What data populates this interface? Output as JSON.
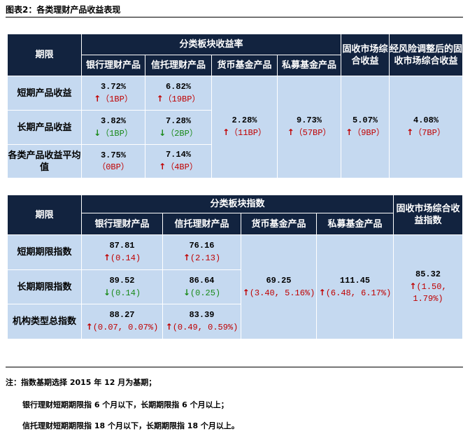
{
  "title": "图表2：各类理财产品收益表现",
  "colors": {
    "header_bg": "#12233f",
    "cell_bg": "#c5d9f0",
    "up": "#c00000",
    "down": "#1a8a1a"
  },
  "table1": {
    "period_header": "期限",
    "group_header": "分类板块收益率",
    "sub_headers": [
      "银行理财产品",
      "信托理财产品",
      "货币基金产品",
      "私募基金产品"
    ],
    "fixed_income_header": "固收市场综合收益",
    "risk_adj_header": "经风险调整后的固收市场综合收益",
    "rows": [
      {
        "label": "短期产品收益",
        "bank": {
          "value": "3.72%",
          "dir": "up",
          "change": "（1BP）"
        },
        "trust": {
          "value": "6.82%",
          "dir": "up",
          "change": "（19BP）"
        }
      },
      {
        "label": "长期产品收益",
        "bank": {
          "value": "3.82%",
          "dir": "down",
          "change": "（1BP）"
        },
        "trust": {
          "value": "7.28%",
          "dir": "down",
          "change": "（2BP）"
        }
      },
      {
        "label": "各类产品收益平均值",
        "bank": {
          "value": "3.75%",
          "dir": "flat",
          "change": "（0BP）"
        },
        "trust": {
          "value": "7.14%",
          "dir": "up",
          "change": "（4BP）"
        }
      }
    ],
    "money_fund": {
      "value": "2.28%",
      "dir": "up",
      "change": "（11BP）"
    },
    "private_fund": {
      "value": "9.73%",
      "dir": "up",
      "change": "（57BP）"
    },
    "fixed_income": {
      "value": "5.07%",
      "dir": "up",
      "change": "（9BP）"
    },
    "risk_adj": {
      "value": "4.08%",
      "dir": "up",
      "change": "（7BP）"
    }
  },
  "table2": {
    "period_header": "期限",
    "group_header": "分类板块指数",
    "sub_headers": [
      "银行理财产品",
      "信托理财产品",
      "货币基金产品",
      "私募基金产品"
    ],
    "fixed_income_header": "固收市场综合收益指数",
    "rows": [
      {
        "label": "短期期限指数",
        "bank": {
          "value": "87.81",
          "dir": "up",
          "change": "(0.14)"
        },
        "trust": {
          "value": "76.16",
          "dir": "up",
          "change": "(2.13)"
        }
      },
      {
        "label": "长期期限指数",
        "bank": {
          "value": "89.52",
          "dir": "down",
          "change": "(0.14)"
        },
        "trust": {
          "value": "86.64",
          "dir": "down",
          "change": "(0.25)"
        }
      },
      {
        "label": "机构类型总指数",
        "bank": {
          "value": "88.27",
          "dir": "up",
          "change": "(0.07, 0.07%)"
        },
        "trust": {
          "value": "83.39",
          "dir": "up",
          "change": "(0.49, 0.59%)"
        }
      }
    ],
    "money_fund": {
      "value": "69.25",
      "dir": "up",
      "change": "(3.40, 5.16%)"
    },
    "private_fund": {
      "value": "111.45",
      "dir": "up",
      "change": "(6.48, 6.17%)"
    },
    "fixed_income": {
      "value": "85.32",
      "dir": "up",
      "change": "(1.50, 1.79%)"
    }
  },
  "notes": [
    "注：指数基期选择 2015 年 12 月为基期；",
    "银行理财短期期限指 6 个月以下，长期期限指 6 个月以上；",
    "信托理财短期期限指 18 个月以下，长期期限指 18 个月以上。"
  ]
}
